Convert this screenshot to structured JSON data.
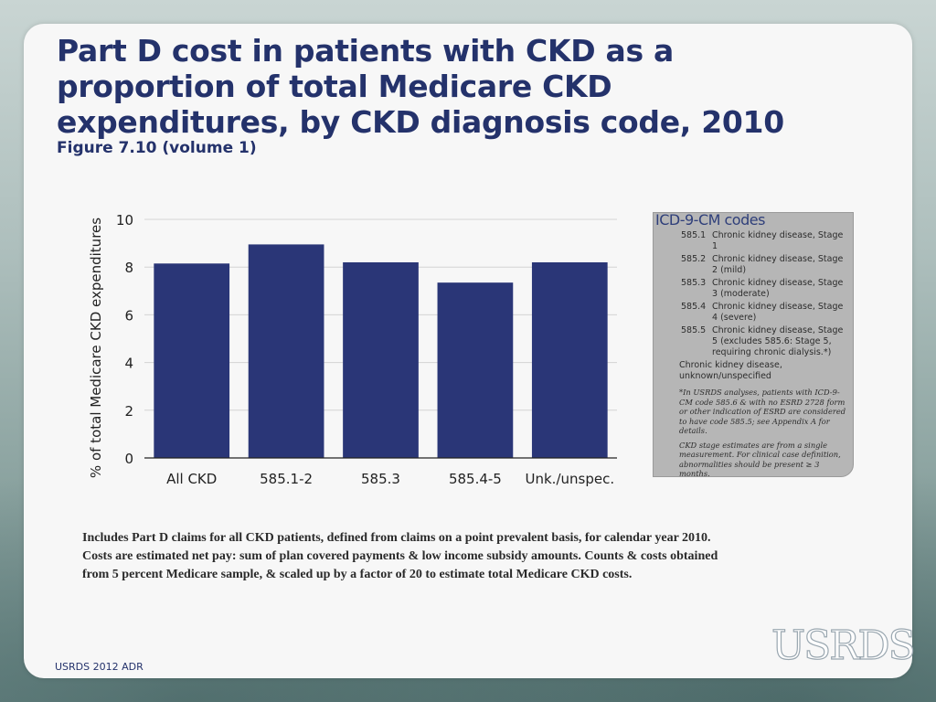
{
  "slide": {
    "title": "Part D cost in patients with CKD as a proportion of total Medicare CKD expenditures, by CKD diagnosis code, 2010",
    "subtitle": "Figure 7.10 (volume 1)",
    "caption": " Includes Part D claims for all CKD patients, defined from claims on a point prevalent basis, for calendar year 2010. Costs are estimated net pay: sum of plan covered payments & low income subsidy amounts. Counts & costs obtained from 5 percent Medicare sample, & scaled up by a factor of 20 to estimate total Medicare CKD costs.",
    "footer": "USRDS 2012 ADR",
    "logo": "USRDS"
  },
  "chart_data": {
    "type": "bar",
    "categories": [
      "All CKD",
      "585.1-2",
      "585.3",
      "585.4-5",
      "Unk./unspec."
    ],
    "values": [
      8.15,
      8.95,
      8.2,
      7.35,
      8.2
    ],
    "ylabel": "% of total Medicare CKD expenditures",
    "xlabel": "",
    "ylim": [
      0,
      10
    ],
    "yticks": [
      0,
      2,
      4,
      6,
      8,
      10
    ],
    "grid": true,
    "bar_color": "#2a3677"
  },
  "icd_codes": {
    "title": "ICD-9-CM codes",
    "items": [
      {
        "code": "585.1",
        "desc": "Chronic kidney disease, Stage 1"
      },
      {
        "code": "585.2",
        "desc": "Chronic kidney disease, Stage 2 (mild)"
      },
      {
        "code": "585.3",
        "desc": "Chronic kidney disease, Stage 3 (moderate)"
      },
      {
        "code": "585.4",
        "desc": "Chronic kidney disease, Stage 4 (severe)"
      },
      {
        "code": "585.5",
        "desc": "Chronic kidney disease, Stage 5 (excludes 585.6: Stage 5, requiring chronic dialysis.*)"
      }
    ],
    "other": "Chronic kidney disease, unknown/unspecified",
    "note1": "*In USRDS analyses, patients with ICD-9-CM code 585.6 & with no ESRD 2728 form or other indication of ESRD are considered to have code 585.5; see Appendix A for details.",
    "note2": "CKD stage estimates are from a single measurement. For clinical case definition, abnormalities should be present ≥ 3 months."
  }
}
